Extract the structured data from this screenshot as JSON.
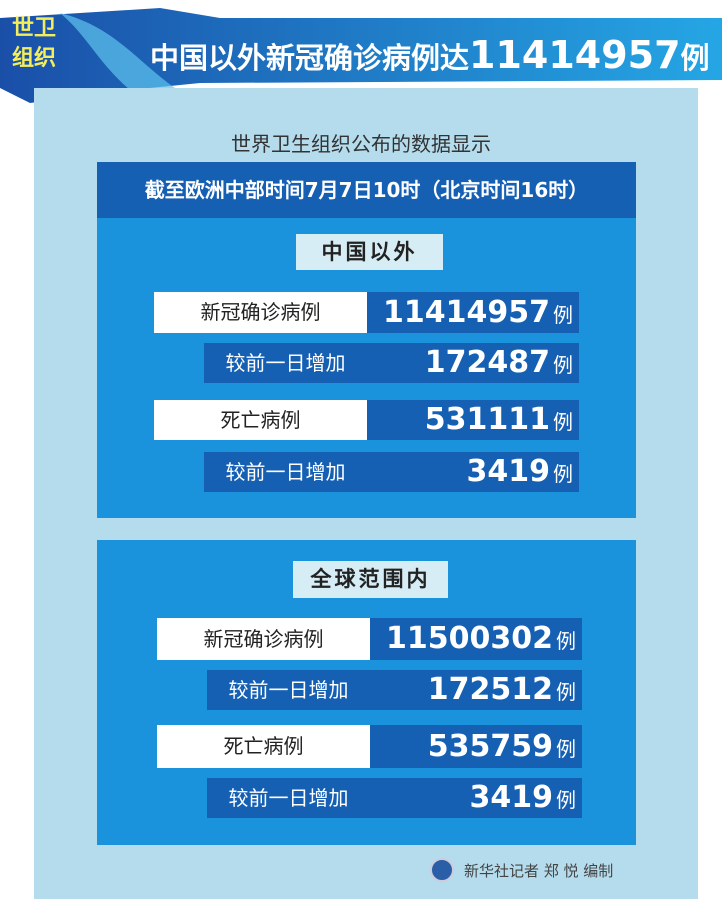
{
  "badge": {
    "line1": "世卫",
    "line2": "组织"
  },
  "title": {
    "text": "中国以外新冠确诊病例达",
    "number": "11414957",
    "unit": "例"
  },
  "subtitle": "世界卫生组织公布的数据显示",
  "date_header": "截至欧洲中部时间7月7日10时（北京时间16时）",
  "sections": [
    {
      "heading": "中国以外",
      "rows": [
        {
          "label": "新冠确诊病例",
          "value": "11414957",
          "unit": "例"
        },
        {
          "label": "较前一日增加",
          "value": "172487",
          "unit": "例"
        },
        {
          "label": "死亡病例",
          "value": "531111",
          "unit": "例"
        },
        {
          "label": "较前一日增加",
          "value": "3419",
          "unit": "例"
        }
      ]
    },
    {
      "heading": "全球范围内",
      "rows": [
        {
          "label": "新冠确诊病例",
          "value": "11500302",
          "unit": "例"
        },
        {
          "label": "较前一日增加",
          "value": "172512",
          "unit": "例"
        },
        {
          "label": "死亡病例",
          "value": "535759",
          "unit": "例"
        },
        {
          "label": "较前一日增加",
          "value": "3419",
          "unit": "例"
        }
      ]
    }
  ],
  "footer": "新华社记者 郑 悦 编制",
  "colors": {
    "panel": "#b5dced",
    "section": "#1a93dc",
    "dark": "#1660b4",
    "badge_text": "#f3ee5a"
  }
}
